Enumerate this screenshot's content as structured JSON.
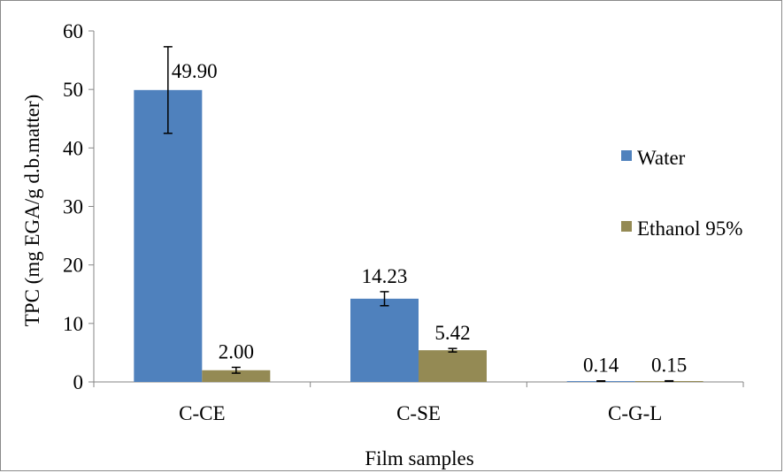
{
  "chart_data": {
    "type": "bar",
    "categories": [
      "C-CE",
      "C-SE",
      "C-G-L"
    ],
    "series": [
      {
        "name": "Water",
        "color": "#4F81BD",
        "values": [
          49.9,
          14.23,
          0.14
        ],
        "labels": [
          "49.90",
          "14.23",
          "0.14"
        ],
        "errors": [
          7.4,
          1.2,
          0.05
        ]
      },
      {
        "name": "Ethanol 95%",
        "color": "#948A54",
        "values": [
          2.0,
          5.42,
          0.15
        ],
        "labels": [
          "2.00",
          "5.42",
          "0.15"
        ],
        "errors": [
          0.5,
          0.3,
          0.05
        ]
      }
    ],
    "xlabel": "Film samples",
    "ylabel": "TPC (mg EGA/g d.b.matter)",
    "ylim": [
      0,
      60
    ],
    "yticks": [
      0,
      10,
      20,
      30,
      40,
      50,
      60
    ],
    "ytick_labels": [
      "0",
      "10",
      "20",
      "30",
      "40",
      "50",
      "60"
    ],
    "grid": false,
    "legend_position": "right"
  }
}
